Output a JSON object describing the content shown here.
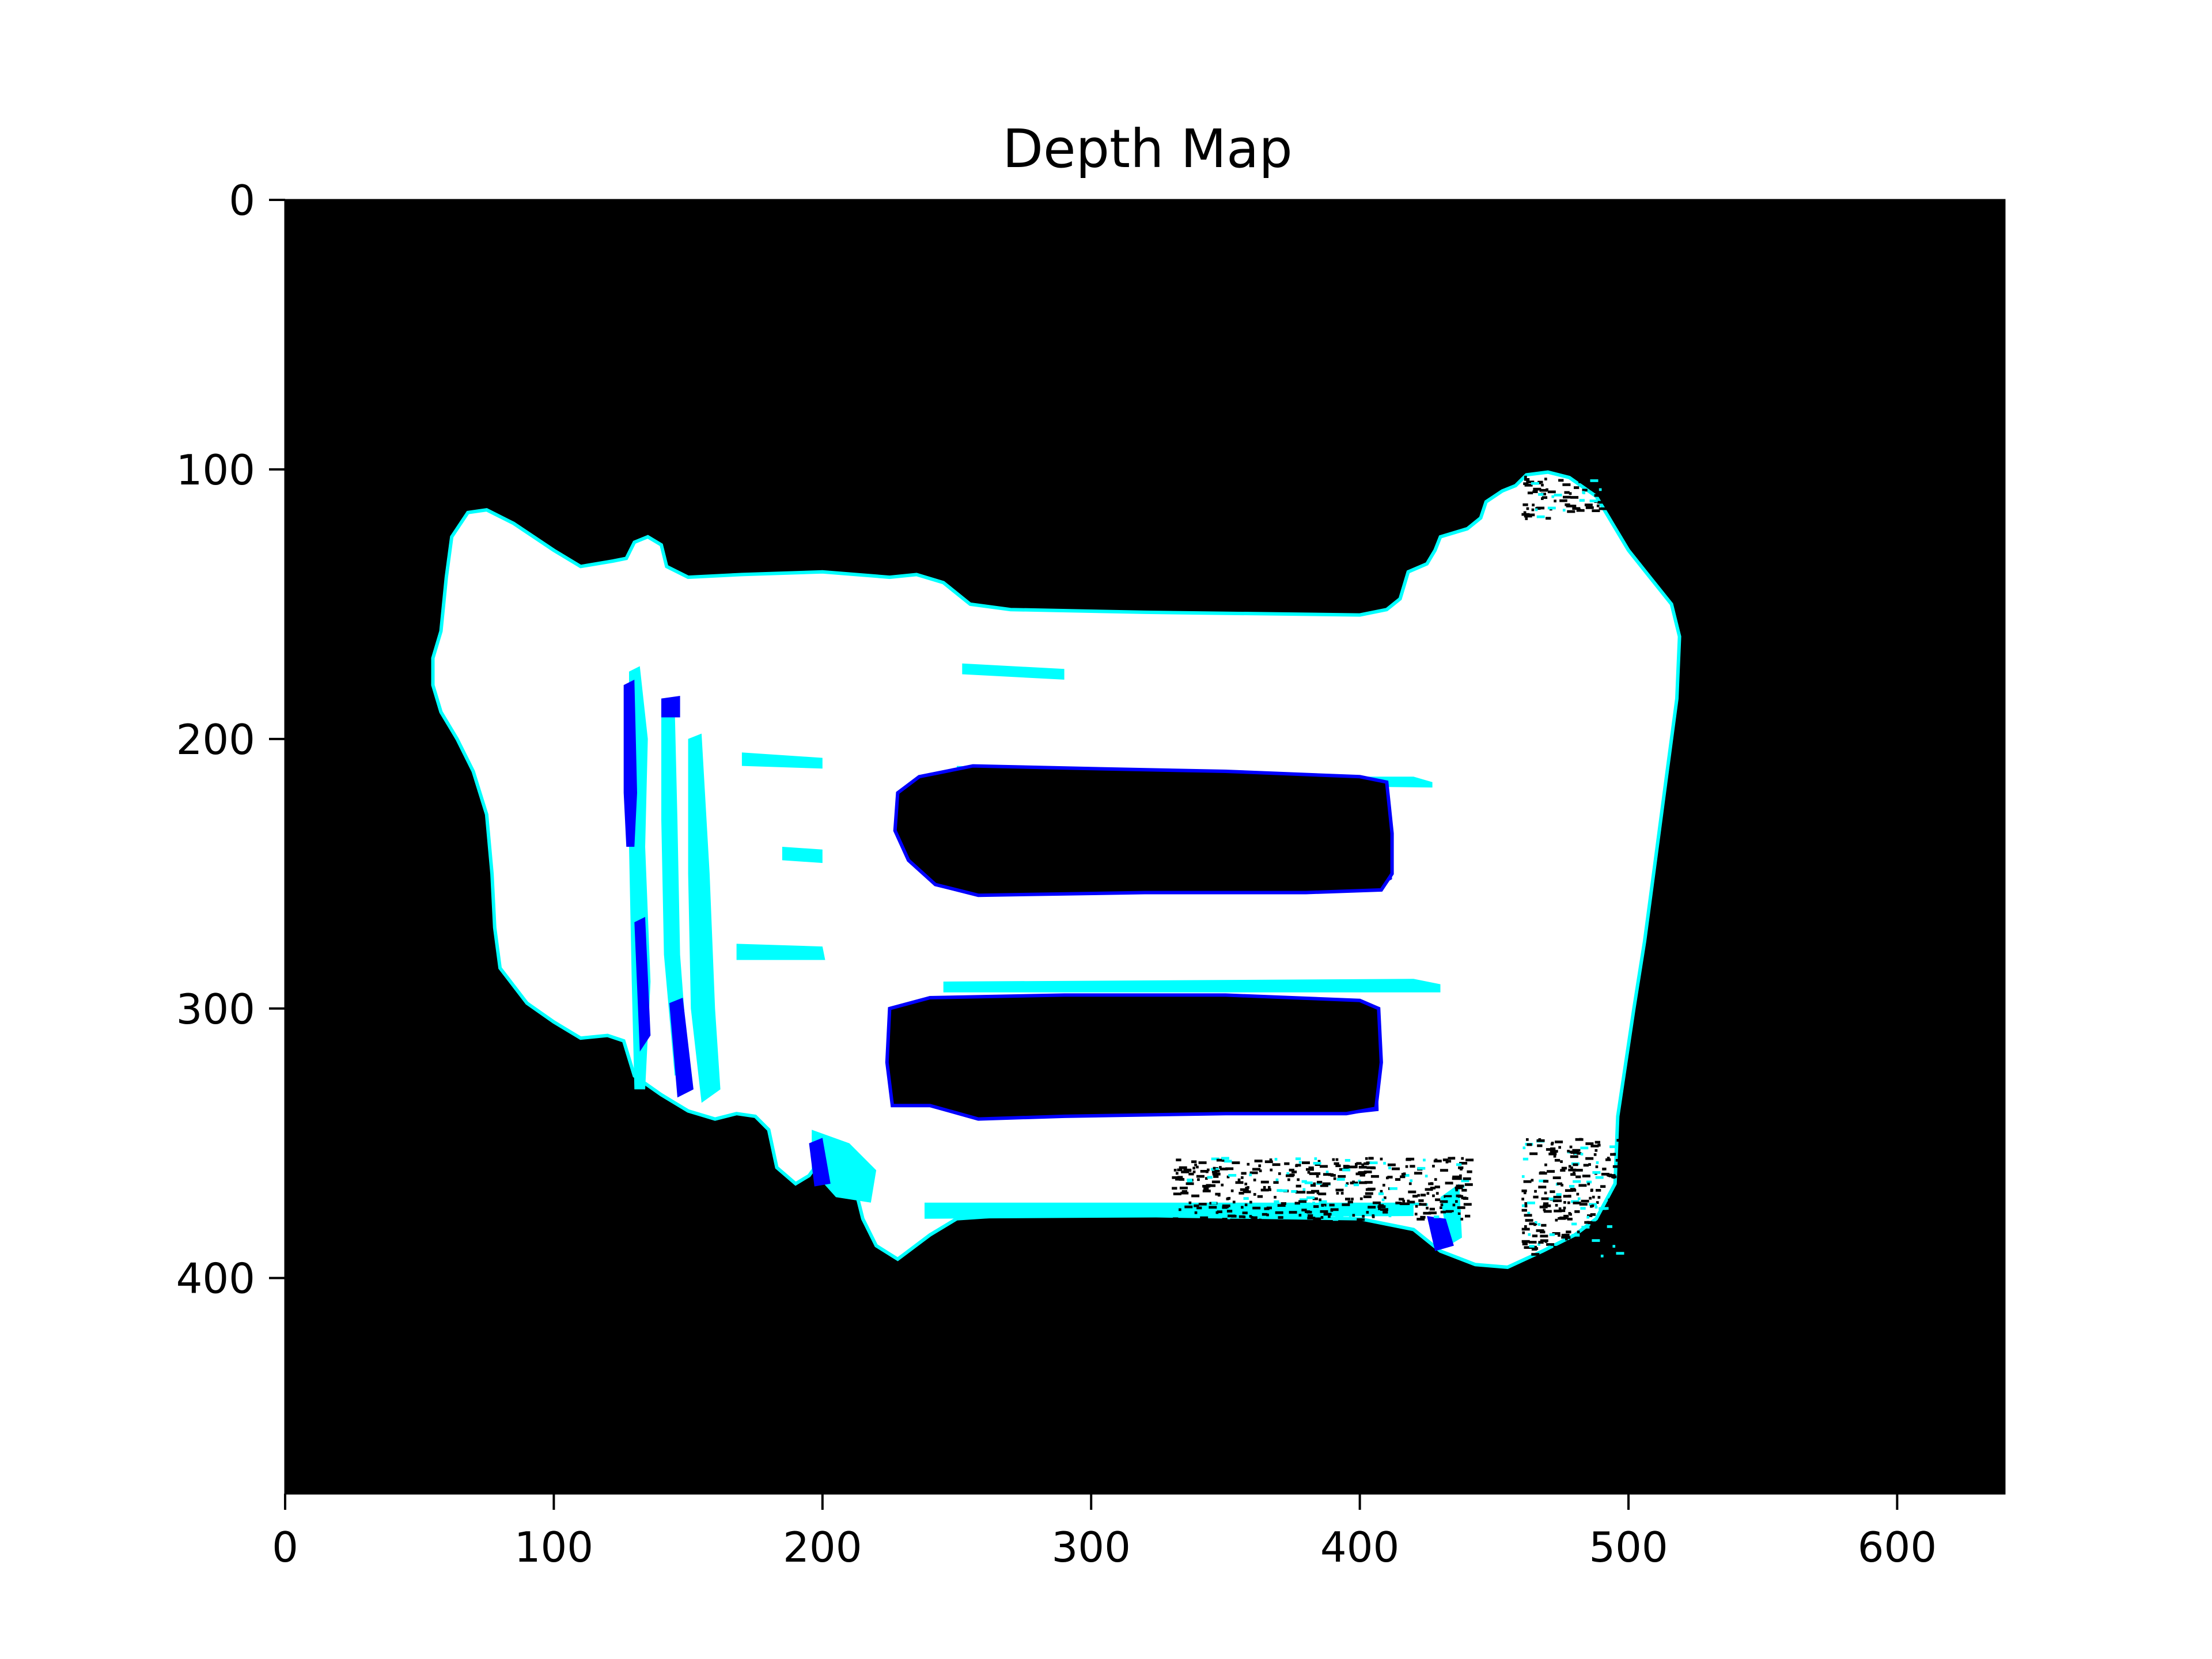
{
  "chart_data": {
    "type": "heatmap",
    "title": "Depth Map",
    "xlabel": "",
    "ylabel": "",
    "xlim": [
      0,
      640
    ],
    "ylim": [
      480,
      0
    ],
    "y_axis_inverted": true,
    "x_ticks": [
      0,
      100,
      200,
      300,
      400,
      500,
      600
    ],
    "y_ticks": [
      0,
      100,
      200,
      300,
      400
    ],
    "x_tick_labels": [
      "0",
      "100",
      "200",
      "300",
      "400",
      "500",
      "600"
    ],
    "y_tick_labels": [
      "0",
      "100",
      "200",
      "300",
      "400"
    ],
    "grid": false,
    "legend": "none",
    "background_color": "#000000",
    "palette": {
      "white": "#ffffff",
      "cyan": "#00ffff",
      "blue": "#0000ff",
      "black": "#000000"
    },
    "object_outline": [
      [
        55,
        170
      ],
      [
        58,
        160
      ],
      [
        60,
        140
      ],
      [
        62,
        125
      ],
      [
        68,
        116
      ],
      [
        75,
        115
      ],
      [
        85,
        120
      ],
      [
        100,
        130
      ],
      [
        110,
        136
      ],
      [
        122,
        134
      ],
      [
        127,
        133
      ],
      [
        130,
        127
      ],
      [
        135,
        125
      ],
      [
        140,
        128
      ],
      [
        142,
        136
      ],
      [
        150,
        140
      ],
      [
        170,
        139
      ],
      [
        200,
        138
      ],
      [
        225,
        140
      ],
      [
        235,
        139
      ],
      [
        245,
        142
      ],
      [
        255,
        150
      ],
      [
        270,
        152
      ],
      [
        320,
        153
      ],
      [
        400,
        154
      ],
      [
        410,
        152
      ],
      [
        415,
        148
      ],
      [
        418,
        138
      ],
      [
        425,
        135
      ],
      [
        428,
        130
      ],
      [
        430,
        125
      ],
      [
        440,
        122
      ],
      [
        445,
        118
      ],
      [
        447,
        112
      ],
      [
        453,
        108
      ],
      [
        458,
        106
      ],
      [
        462,
        102
      ],
      [
        470,
        101
      ],
      [
        478,
        103
      ],
      [
        488,
        110
      ],
      [
        494,
        120
      ],
      [
        500,
        130
      ],
      [
        508,
        140
      ],
      [
        516,
        150
      ],
      [
        519,
        162
      ],
      [
        518,
        185
      ],
      [
        514,
        215
      ],
      [
        510,
        245
      ],
      [
        506,
        275
      ],
      [
        502,
        300
      ],
      [
        499,
        320
      ],
      [
        496,
        340
      ],
      [
        495,
        365
      ],
      [
        488,
        378
      ],
      [
        480,
        384
      ],
      [
        468,
        390
      ],
      [
        455,
        396
      ],
      [
        443,
        395
      ],
      [
        430,
        390
      ],
      [
        420,
        382
      ],
      [
        400,
        378
      ],
      [
        330,
        377
      ],
      [
        280,
        376
      ],
      [
        250,
        378
      ],
      [
        240,
        384
      ],
      [
        228,
        393
      ],
      [
        220,
        388
      ],
      [
        215,
        378
      ],
      [
        212,
        366
      ],
      [
        208,
        358
      ],
      [
        200,
        355
      ],
      [
        195,
        362
      ],
      [
        190,
        365
      ],
      [
        183,
        359
      ],
      [
        180,
        345
      ],
      [
        175,
        340
      ],
      [
        168,
        339
      ],
      [
        160,
        341
      ],
      [
        150,
        338
      ],
      [
        140,
        332
      ],
      [
        130,
        325
      ],
      [
        126,
        312
      ],
      [
        120,
        310
      ],
      [
        110,
        311
      ],
      [
        100,
        305
      ],
      [
        90,
        298
      ],
      [
        80,
        285
      ],
      [
        78,
        270
      ],
      [
        77,
        250
      ],
      [
        75,
        228
      ],
      [
        70,
        212
      ],
      [
        64,
        200
      ],
      [
        58,
        190
      ],
      [
        55,
        180
      ]
    ],
    "holes": [
      [
        [
          228,
          220
        ],
        [
          236,
          214
        ],
        [
          256,
          210
        ],
        [
          300,
          211
        ],
        [
          350,
          212
        ],
        [
          400,
          214
        ],
        [
          410,
          216
        ],
        [
          412,
          235
        ],
        [
          412,
          250
        ],
        [
          408,
          256
        ],
        [
          380,
          257
        ],
        [
          320,
          257
        ],
        [
          258,
          258
        ],
        [
          242,
          254
        ],
        [
          232,
          245
        ],
        [
          227,
          234
        ]
      ],
      [
        [
          225,
          300
        ],
        [
          240,
          296
        ],
        [
          290,
          295
        ],
        [
          350,
          295
        ],
        [
          400,
          297
        ],
        [
          407,
          300
        ],
        [
          408,
          320
        ],
        [
          406,
          337
        ],
        [
          395,
          339
        ],
        [
          350,
          339
        ],
        [
          290,
          340
        ],
        [
          258,
          341
        ],
        [
          240,
          336
        ],
        [
          226,
          336
        ],
        [
          224,
          320
        ]
      ]
    ],
    "cyan_regions": [
      [
        [
          128,
          175
        ],
        [
          132,
          173
        ],
        [
          135,
          200
        ],
        [
          134,
          240
        ],
        [
          136,
          290
        ],
        [
          134,
          330
        ],
        [
          130,
          330
        ],
        [
          129,
          290
        ],
        [
          128,
          240
        ]
      ],
      [
        [
          140,
          190
        ],
        [
          145,
          188
        ],
        [
          146,
          230
        ],
        [
          147,
          280
        ],
        [
          150,
          320
        ],
        [
          145,
          325
        ],
        [
          141,
          280
        ],
        [
          140,
          230
        ]
      ],
      [
        [
          150,
          200
        ],
        [
          155,
          198
        ],
        [
          158,
          250
        ],
        [
          160,
          300
        ],
        [
          162,
          330
        ],
        [
          155,
          335
        ],
        [
          151,
          300
        ],
        [
          150,
          250
        ]
      ],
      [
        [
          168,
          276
        ],
        [
          200,
          277
        ],
        [
          201,
          282
        ],
        [
          168,
          282
        ]
      ],
      [
        [
          170,
          205
        ],
        [
          200,
          207
        ],
        [
          200,
          211
        ],
        [
          170,
          210
        ]
      ],
      [
        [
          185,
          240
        ],
        [
          200,
          241
        ],
        [
          200,
          246
        ],
        [
          185,
          245
        ]
      ],
      [
        [
          196,
          345
        ],
        [
          210,
          350
        ],
        [
          220,
          360
        ],
        [
          218,
          372
        ],
        [
          205,
          370
        ],
        [
          196,
          360
        ]
      ],
      [
        [
          252,
          172
        ],
        [
          290,
          174
        ],
        [
          290,
          178
        ],
        [
          252,
          176
        ]
      ],
      [
        [
          245,
          290
        ],
        [
          420,
          289
        ],
        [
          430,
          291
        ],
        [
          430,
          294
        ],
        [
          245,
          294
        ]
      ],
      [
        [
          238,
          372
        ],
        [
          420,
          372
        ],
        [
          420,
          377
        ],
        [
          238,
          378
        ]
      ],
      [
        [
          430,
          370
        ],
        [
          437,
          365
        ],
        [
          438,
          385
        ],
        [
          433,
          388
        ]
      ],
      [
        [
          250,
          210
        ],
        [
          330,
          213
        ],
        [
          380,
          214
        ],
        [
          420,
          214
        ],
        [
          427,
          216
        ],
        [
          427,
          218
        ],
        [
          250,
          216
        ]
      ]
    ],
    "blue_regions": [
      [
        [
          126,
          180
        ],
        [
          130,
          178
        ],
        [
          131,
          220
        ],
        [
          130,
          240
        ],
        [
          127,
          240
        ],
        [
          126,
          220
        ]
      ],
      [
        [
          130,
          268
        ],
        [
          134,
          266
        ],
        [
          136,
          310
        ],
        [
          132,
          316
        ]
      ],
      [
        [
          140,
          185
        ],
        [
          147,
          184
        ],
        [
          147,
          192
        ],
        [
          140,
          192
        ]
      ],
      [
        [
          143,
          298
        ],
        [
          148,
          296
        ],
        [
          152,
          330
        ],
        [
          146,
          333
        ]
      ],
      [
        [
          195,
          350
        ],
        [
          200,
          348
        ],
        [
          203,
          365
        ],
        [
          197,
          366
        ]
      ],
      [
        [
          395,
          220
        ],
        [
          410,
          218
        ],
        [
          412,
          252
        ],
        [
          405,
          256
        ],
        [
          396,
          245
        ]
      ],
      [
        [
          398,
          300
        ],
        [
          406,
          300
        ],
        [
          407,
          338
        ],
        [
          398,
          339
        ]
      ],
      [
        [
          425,
          377
        ],
        [
          432,
          378
        ],
        [
          435,
          388
        ],
        [
          428,
          390
        ]
      ]
    ],
    "noise_regions": [
      [
        [
          330,
          355
        ],
        [
          440,
          362
        ],
        [
          440,
          378
        ],
        [
          330,
          372
        ]
      ],
      [
        [
          460,
          358
        ],
        [
          495,
          348
        ],
        [
          496,
          380
        ],
        [
          460,
          392
        ]
      ],
      [
        [
          460,
          102
        ],
        [
          490,
          104
        ],
        [
          488,
          118
        ],
        [
          460,
          112
        ]
      ]
    ]
  }
}
